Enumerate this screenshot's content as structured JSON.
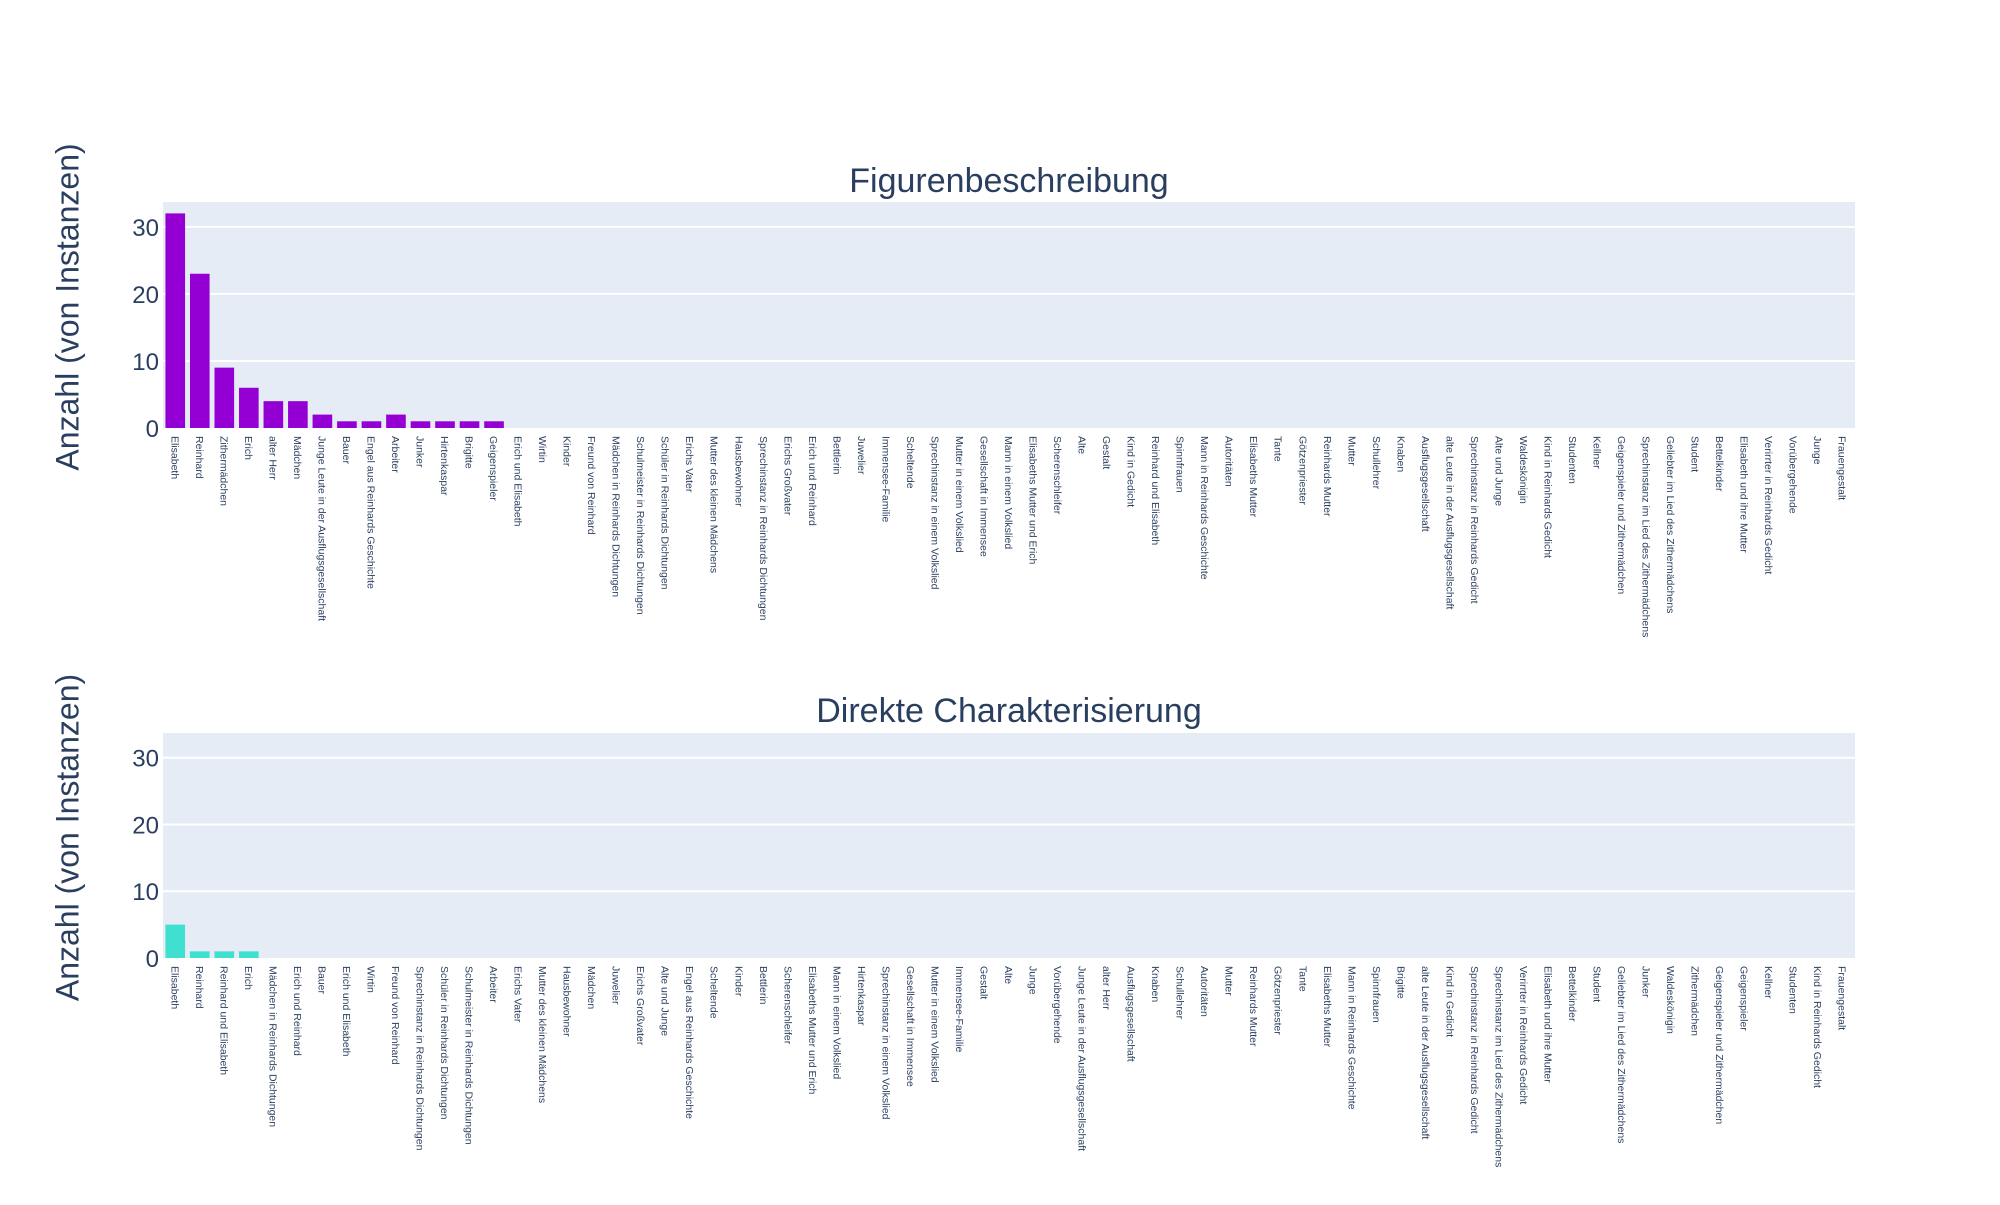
{
  "chart_data": [
    {
      "type": "bar",
      "title": "Figurenbeschreibung",
      "xlabel": "",
      "ylabel": "Anzahl (von Instanzen)",
      "ylim": [
        0,
        33.7
      ],
      "yticks": [
        "0",
        "10",
        "20",
        "30"
      ],
      "bar_color": "#9400d3",
      "background": "#e5ecf6",
      "grid": true,
      "categories": [
        "Elisabeth",
        "Reinhard",
        "Zithermädchen",
        "Erich",
        "alter Herr",
        "Mädchen",
        "Junge Leute in der Ausflugsgesellschaft",
        "Bauer",
        "Engel aus Reinhards Geschichte",
        "Arbeiter",
        "Junker",
        "Hirtenkaspar",
        "Brigitte",
        "Geigenspieler",
        "Erich und Elisabeth",
        "Wirtin",
        "Kinder",
        "Freund von Reinhard",
        "Mädchen in Reinhards Dichtungen",
        "Schulmeister in Reinhards Dichtungen",
        "Schüler in Reinhards Dichtungen",
        "Erichs Vater",
        "Mutter des kleinen Mädchens",
        "Hausbewohner",
        "Sprechinstanz in Reinhards Dichtungen",
        "Erichs Großvater",
        "Erich und Reinhard",
        "Bettlerin",
        "Juwelier",
        "Immensee-Familie",
        "Scheltende",
        "Sprechinstanz in einem Volkslied",
        "Mutter in einem Volkslied",
        "Gesellschaft in Immensee",
        "Mann in einem Volkslied",
        "Elisabeths Mutter und Erich",
        "Scherenschleifer",
        "Alte",
        "Gestalt",
        "Kind in Gedicht",
        "Reinhard und Elisabeth",
        "Spinnfrauen",
        "Mann in Reinhards Geschichte",
        "Autoritäten",
        "Elisabeths Mutter",
        "Tante",
        "Götzenpriester",
        "Reinhards Mutter",
        "Mutter",
        "Schullehrer",
        "Knaben",
        "Ausflugsgesellschaft",
        "alte Leute in der Ausflugsgesellschaft",
        "Sprechinstanz in Reinhards Gedicht",
        "Alte und Junge",
        "Waldeskönigin",
        "Kind in Reinhards Gedicht",
        "Studenten",
        "Kellner",
        "Geigenspieler und Zithermädchen",
        "Sprechinstanz im Lied des Zithermädchens",
        "Geliebter im Lied des Zithermädchens",
        "Student",
        "Bettelkinder",
        "Elisabeth und ihre Mutter",
        "Verirrter in Reinhards Gedicht",
        "Vorübergehende",
        "Junge",
        "Frauengestalt"
      ],
      "values": [
        32,
        23,
        9,
        6,
        4,
        4,
        2,
        1,
        1,
        2,
        1,
        1,
        1,
        1,
        0,
        0,
        0,
        0,
        0,
        0,
        0,
        0,
        0,
        0,
        0,
        0,
        0,
        0,
        0,
        0,
        0,
        0,
        0,
        0,
        0,
        0,
        0,
        0,
        0,
        0,
        0,
        0,
        0,
        0,
        0,
        0,
        0,
        0,
        0,
        0,
        0,
        0,
        0,
        0,
        0,
        0,
        0,
        0,
        0,
        0,
        0,
        0,
        0,
        0,
        0,
        0,
        0,
        0,
        0
      ]
    },
    {
      "type": "bar",
      "title": "Direkte Charakterisierung",
      "xlabel": "",
      "ylabel": "Anzahl (von Instanzen)",
      "ylim": [
        0,
        33.7
      ],
      "yticks": [
        "0",
        "10",
        "20",
        "30"
      ],
      "bar_color": "#40e0d0",
      "background": "#e5ecf6",
      "grid": true,
      "categories": [
        "Elisabeth",
        "Reinhard",
        "Reinhard und Elisabeth",
        "Erich",
        "Mädchen in Reinhards Dichtungen",
        "Erich und Reinhard",
        "Bauer",
        "Erich und Elisabeth",
        "Wirtin",
        "Freund von Reinhard",
        "Sprechinstanz in Reinhards Dichtungen",
        "Schüler in Reinhards Dichtungen",
        "Schulmeister in Reinhards Dichtungen",
        "Arbeiter",
        "Erichs Vater",
        "Mutter des kleinen Mädchens",
        "Hausbewohner",
        "Mädchen",
        "Juwelier",
        "Erichs Großvater",
        "Alte und Junge",
        "Engel aus Reinhards Geschichte",
        "Scheltende",
        "Kinder",
        "Bettlerin",
        "Scherenschleifer",
        "Elisabeths Mutter und Erich",
        "Mann in einem Volkslied",
        "Hirtenkaspar",
        "Sprechinstanz in einem Volkslied",
        "Gesellschaft in Immensee",
        "Mutter in einem Volkslied",
        "Immensee-Familie",
        "Gestalt",
        "Alte",
        "Junge",
        "Vorübergehende",
        "Junge Leute in der Ausflugsgesellschaft",
        "alter Herr",
        "Ausflugsgesellschaft",
        "Knaben",
        "Schullehrer",
        "Autoritäten",
        "Mutter",
        "Reinhards Mutter",
        "Götzenpriester",
        "Tante",
        "Elisabeths Mutter",
        "Mann in Reinhards Geschichte",
        "Spinnfrauen",
        "Brigitte",
        "alte Leute in der Ausflugsgesellschaft",
        "Kind in Gedicht",
        "Sprechinstanz in Reinhards Gedicht",
        "Sprechinstanz im Lied des Zithermädchens",
        "Verirrter in Reinhards Gedicht",
        "Elisabeth und ihre Mutter",
        "Bettelkinder",
        "Student",
        "Geliebter im Lied des Zithermädchens",
        "Junker",
        "Waldeskönigin",
        "Zithermädchen",
        "Geigenspieler und Zithermädchen",
        "Geigenspieler",
        "Kellner",
        "Studenten",
        "Kind in Reinhards Gedicht",
        "Frauengestalt"
      ],
      "values": [
        5,
        1,
        1,
        1,
        0,
        0,
        0,
        0,
        0,
        0,
        0,
        0,
        0,
        0,
        0,
        0,
        0,
        0,
        0,
        0,
        0,
        0,
        0,
        0,
        0,
        0,
        0,
        0,
        0,
        0,
        0,
        0,
        0,
        0,
        0,
        0,
        0,
        0,
        0,
        0,
        0,
        0,
        0,
        0,
        0,
        0,
        0,
        0,
        0,
        0,
        0,
        0,
        0,
        0,
        0,
        0,
        0,
        0,
        0,
        0,
        0,
        0,
        0,
        0,
        0,
        0,
        0,
        0,
        0
      ]
    }
  ]
}
